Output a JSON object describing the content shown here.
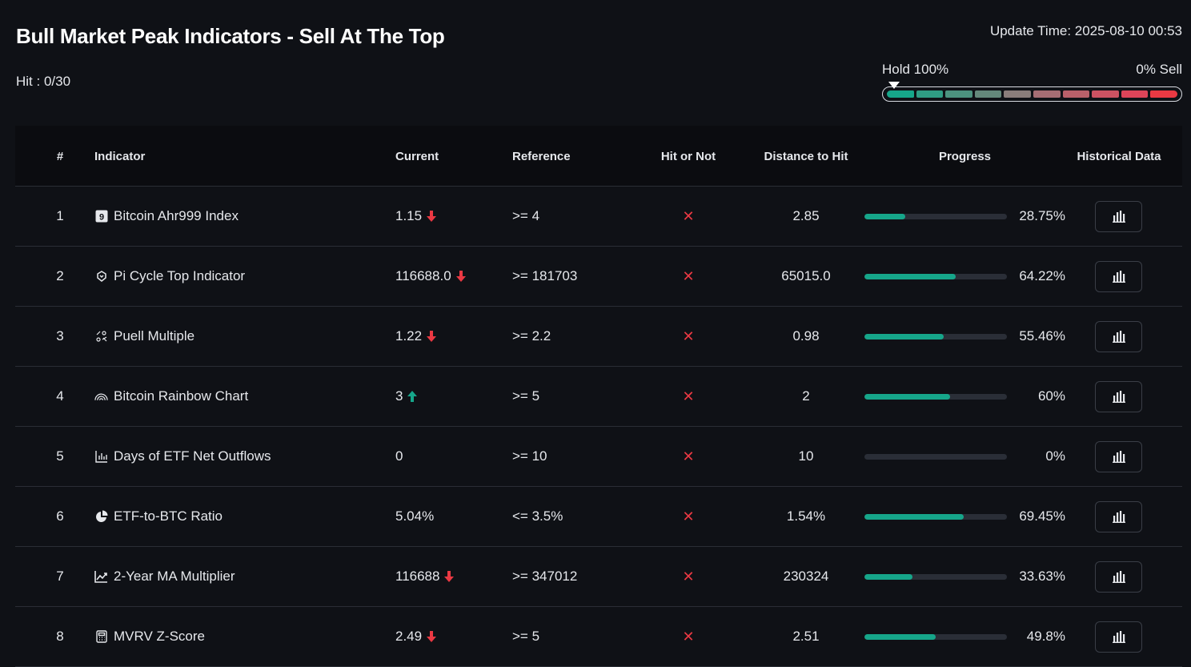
{
  "header": {
    "title": "Bull Market Peak Indicators - Sell At The Top",
    "hit_label": "Hit : 0/30",
    "update_time": "Update Time: 2025-08-10 00:53",
    "meter_left_label": "Hold 100%",
    "meter_right_label": "0% Sell",
    "meter_colors": [
      "#16a68a",
      "#2f9c84",
      "#4c927f",
      "#64887b",
      "#8a7d7b",
      "#a66d74",
      "#b9606a",
      "#cc5262",
      "#dd4459",
      "#ea3943"
    ]
  },
  "table": {
    "columns": {
      "num": "#",
      "indicator": "Indicator",
      "current": "Current",
      "reference": "Reference",
      "hit": "Hit or Not",
      "distance": "Distance to Hit",
      "progress": "Progress",
      "historical": "Historical Data"
    },
    "rows": [
      {
        "num": "1",
        "icon": "ahr999-icon",
        "name": "Bitcoin Ahr999 Index",
        "current": "1.15",
        "trend": "down",
        "reference": ">= 4",
        "hit": "✕",
        "distance": "2.85",
        "progress": 28.75,
        "progress_label": "28.75%"
      },
      {
        "num": "2",
        "icon": "pi-cycle-icon",
        "name": "Pi Cycle Top Indicator",
        "current": "116688.0",
        "trend": "down",
        "reference": ">= 181703",
        "hit": "✕",
        "distance": "65015.0",
        "progress": 64.22,
        "progress_label": "64.22%"
      },
      {
        "num": "3",
        "icon": "puell-icon",
        "name": "Puell Multiple",
        "current": "1.22",
        "trend": "down",
        "reference": ">= 2.2",
        "hit": "✕",
        "distance": "0.98",
        "progress": 55.46,
        "progress_label": "55.46%"
      },
      {
        "num": "4",
        "icon": "rainbow-icon",
        "name": "Bitcoin Rainbow Chart",
        "current": "3",
        "trend": "up",
        "reference": ">= 5",
        "hit": "✕",
        "distance": "2",
        "progress": 60,
        "progress_label": "60%"
      },
      {
        "num": "5",
        "icon": "bar-chart-icon",
        "name": "Days of ETF Net Outflows",
        "current": "0",
        "trend": "none",
        "reference": ">= 10",
        "hit": "✕",
        "distance": "10",
        "progress": 0,
        "progress_label": "0%"
      },
      {
        "num": "6",
        "icon": "pie-chart-icon",
        "name": "ETF-to-BTC Ratio",
        "current": "5.04%",
        "trend": "none",
        "reference": "<= 3.5%",
        "hit": "✕",
        "distance": "1.54%",
        "progress": 69.45,
        "progress_label": "69.45%"
      },
      {
        "num": "7",
        "icon": "line-chart-icon",
        "name": "2-Year MA Multiplier",
        "current": "116688",
        "trend": "down",
        "reference": ">= 347012",
        "hit": "✕",
        "distance": "230324",
        "progress": 33.63,
        "progress_label": "33.63%"
      },
      {
        "num": "8",
        "icon": "calculator-icon",
        "name": "MVRV Z-Score",
        "current": "2.49",
        "trend": "down",
        "reference": ">= 5",
        "hit": "✕",
        "distance": "2.51",
        "progress": 49.8,
        "progress_label": "49.8%"
      }
    ]
  },
  "colors": {
    "accent": "#16a68a",
    "down": "#ea3943",
    "up": "#16a68a"
  }
}
